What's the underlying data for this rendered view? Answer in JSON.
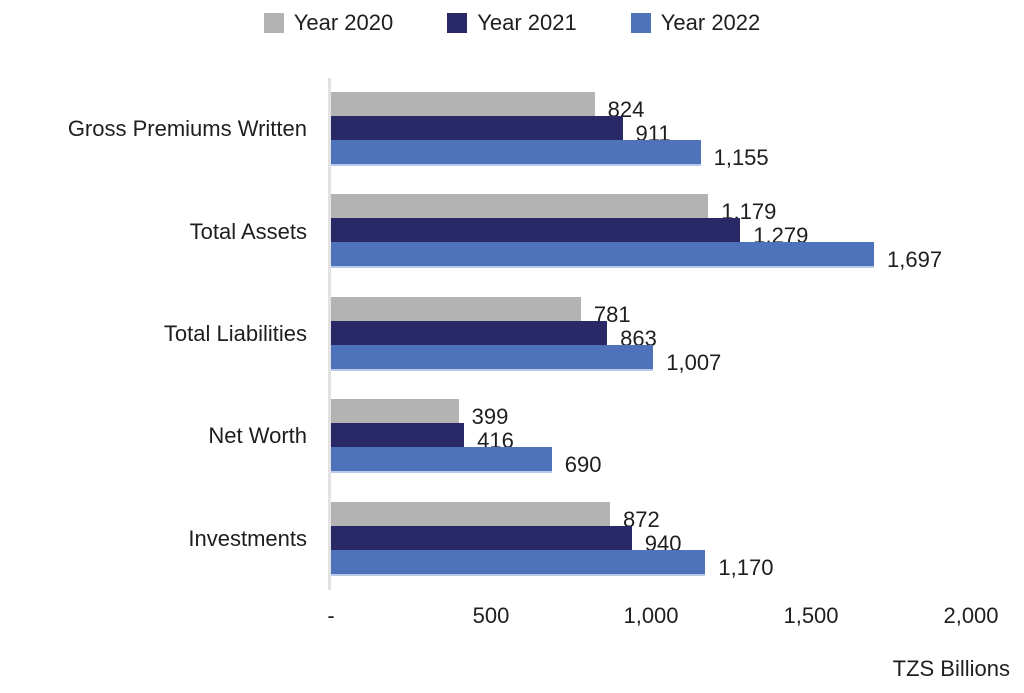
{
  "chart_data": {
    "type": "bar",
    "orientation": "horizontal",
    "categories": [
      "Gross Premiums Written",
      "Total Assets",
      "Total Liabilities",
      "Net Worth",
      "Investments"
    ],
    "series": [
      {
        "name": "Year 2020",
        "color": "#b3b3b3",
        "values": [
          824,
          1179,
          781,
          399,
          872
        ]
      },
      {
        "name": "Year 2021",
        "color": "#2a2968",
        "values": [
          911,
          1279,
          863,
          416,
          940
        ]
      },
      {
        "name": "Year 2022",
        "color": "#4e73bb",
        "values": [
          1155,
          1697,
          1007,
          690,
          1170
        ]
      }
    ],
    "value_labels": [
      [
        "824",
        "911",
        "1,155"
      ],
      [
        "1,179",
        "1,279",
        "1,697"
      ],
      [
        "781",
        "863",
        "1,007"
      ],
      [
        "399",
        "416",
        "690"
      ],
      [
        "872",
        "940",
        "1,170"
      ]
    ],
    "xlabel": "TZS Billions",
    "xlim": [
      0,
      2000
    ],
    "xticks": {
      "values": [
        0,
        500,
        1000,
        1500,
        2000
      ],
      "labels": [
        "-",
        "500",
        "1,000",
        "1,500",
        "2,000"
      ]
    },
    "legend_position": "top",
    "grid": "off",
    "axis_line_color": "#e2e2e2",
    "text_color": "#1e1e1e"
  }
}
